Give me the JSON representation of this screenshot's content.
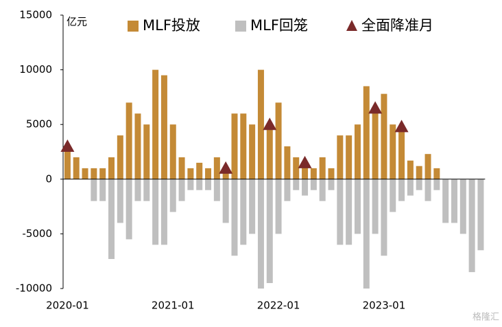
{
  "chart_data": {
    "type": "bar",
    "y_label": "亿元",
    "watermark": "格隆汇",
    "categories": [
      "2020-01",
      null,
      null,
      null,
      null,
      null,
      null,
      null,
      null,
      null,
      null,
      null,
      "2021-01",
      null,
      null,
      null,
      null,
      null,
      null,
      null,
      null,
      null,
      null,
      null,
      "2022-01",
      null,
      null,
      null,
      null,
      null,
      null,
      null,
      null,
      null,
      null,
      null,
      "2023-01",
      null,
      null,
      null,
      null,
      null,
      null,
      null,
      null,
      null,
      null,
      null
    ],
    "series": [
      {
        "name": "MLF投放",
        "color": "#c48a36",
        "values": [
          3000,
          2000,
          1000,
          1000,
          1000,
          2000,
          4000,
          7000,
          6000,
          5000,
          10000,
          9500,
          5000,
          2000,
          1000,
          1500,
          1000,
          2000,
          1000,
          6000,
          6000,
          5000,
          10000,
          5000,
          7000,
          3000,
          2000,
          1500,
          1000,
          2000,
          1000,
          4000,
          4000,
          5000,
          8500,
          6500,
          7800,
          5000,
          4800,
          1700,
          1200,
          2300,
          1000,
          0,
          0,
          0,
          0,
          0
        ]
      },
      {
        "name": "MLF回笼",
        "color": "#bfbfbf",
        "values": [
          0,
          0,
          0,
          -2000,
          -2000,
          -7300,
          -4000,
          -5500,
          -2000,
          -2000,
          -6000,
          -6000,
          -3000,
          -2000,
          -1000,
          -1000,
          -1000,
          -2000,
          -4000,
          -7000,
          -6000,
          -5000,
          -10000,
          -9500,
          -5000,
          -2000,
          -1000,
          -1500,
          -1000,
          -2000,
          -1000,
          -6000,
          -6000,
          -5000,
          -10000,
          -5000,
          -7000,
          -3000,
          -2000,
          -1500,
          -1000,
          -2000,
          -1000,
          -4000,
          -4000,
          -5000,
          -8500,
          -6500
        ]
      },
      {
        "name": "全面降准月",
        "color": "#7a2a2a",
        "marker": "triangle",
        "values": [
          3000,
          null,
          null,
          null,
          null,
          null,
          null,
          null,
          null,
          null,
          null,
          null,
          null,
          null,
          null,
          null,
          null,
          null,
          1000,
          null,
          null,
          null,
          null,
          5000,
          null,
          null,
          null,
          1500,
          null,
          null,
          null,
          null,
          null,
          null,
          null,
          6500,
          null,
          null,
          4800,
          null,
          null,
          null,
          null,
          null,
          null,
          null,
          null,
          null
        ]
      }
    ],
    "ylim": [
      -10000,
      15000
    ],
    "yticks": [
      15000,
      10000,
      5000,
      0,
      -5000,
      -10000
    ]
  }
}
